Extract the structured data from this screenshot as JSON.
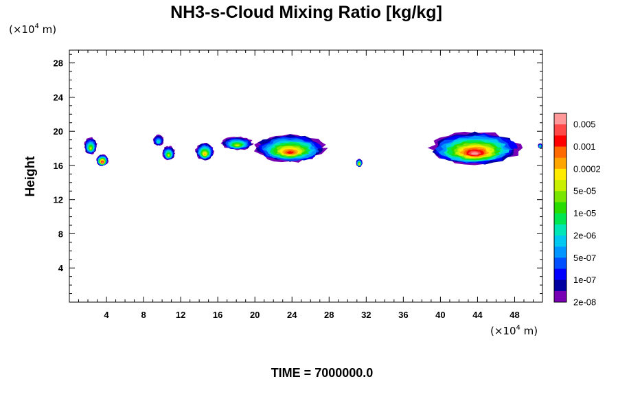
{
  "chart_data": {
    "type": "heatmap",
    "title": "NH3-s-Cloud Mixing Ratio [kg/kg]",
    "xunit": "(×10",
    "xunit_exp": "4",
    "xunit_tail": " m)",
    "yunit": "(×10",
    "yunit_exp": "4",
    "yunit_tail": " m)",
    "xlabel": "",
    "ylabel": "Height",
    "time_label": "TIME = 7000000.0",
    "xlim": [
      0,
      51
    ],
    "ylim": [
      0,
      29.5
    ],
    "x_ticks": [
      "4",
      "8",
      "12",
      "16",
      "20",
      "24",
      "28",
      "32",
      "36",
      "40",
      "44",
      "48"
    ],
    "x_tick_values": [
      4,
      8,
      12,
      16,
      20,
      24,
      28,
      32,
      36,
      40,
      44,
      48
    ],
    "y_ticks": [
      "4",
      "8",
      "12",
      "16",
      "20",
      "24",
      "28"
    ],
    "y_tick_values": [
      4,
      8,
      12,
      16,
      20,
      24,
      28
    ],
    "colorbar": {
      "labels": [
        "0.005",
        "0.001",
        "0.0002",
        "5e-05",
        "1e-05",
        "2e-06",
        "5e-07",
        "1e-07",
        "2e-08"
      ],
      "colors": [
        "#ff9999",
        "#ff4848",
        "#ff0000",
        "#ff6a00",
        "#ffa500",
        "#ffeb00",
        "#c8f000",
        "#78e600",
        "#28dc00",
        "#00e650",
        "#00e6b4",
        "#00c8f0",
        "#0096ff",
        "#0050ff",
        "#0000ff",
        "#0000a0",
        "#7800b4"
      ]
    },
    "cloud_features": [
      {
        "x0": 1.6,
        "x1": 3.0,
        "y0": 17.3,
        "y1": 19.3,
        "core": 2
      },
      {
        "x0": 2.9,
        "x1": 4.2,
        "y0": 15.9,
        "y1": 17.3,
        "core": 5
      },
      {
        "x0": 9.0,
        "x1": 10.2,
        "y0": 18.3,
        "y1": 19.6,
        "core": 0
      },
      {
        "x0": 10.0,
        "x1": 11.4,
        "y0": 16.6,
        "y1": 18.3,
        "core": 2
      },
      {
        "x0": 13.6,
        "x1": 15.6,
        "y0": 16.6,
        "y1": 18.7,
        "core": 3
      },
      {
        "x0": 16.4,
        "x1": 19.8,
        "y0": 17.8,
        "y1": 19.4,
        "core": 2
      },
      {
        "x0": 20.0,
        "x1": 27.6,
        "y0": 16.4,
        "y1": 19.7,
        "core": 4
      },
      {
        "x0": 30.9,
        "x1": 31.6,
        "y0": 15.8,
        "y1": 16.8,
        "core": 3
      },
      {
        "x0": 38.8,
        "x1": 48.6,
        "y0": 16.1,
        "y1": 20.0,
        "core": 6
      },
      {
        "x0": 50.5,
        "x1": 51.0,
        "y0": 18.0,
        "y1": 18.6,
        "core": 1
      }
    ]
  }
}
